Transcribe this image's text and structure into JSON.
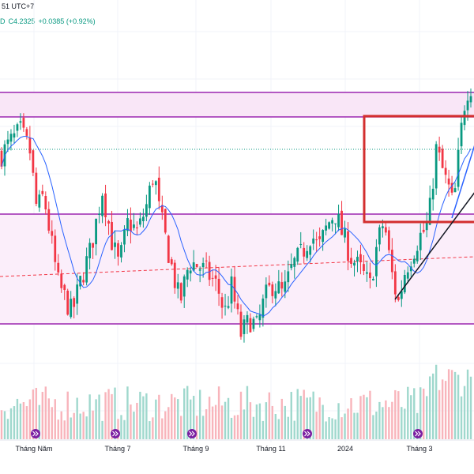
{
  "header": {
    "timezone_text": "51 UTC+7",
    "ohlc_prefix": "D",
    "close_text": "C4.2325",
    "change_text": "+0.0385 (+0.92%)"
  },
  "colors": {
    "up": "#089981",
    "down": "#f23645",
    "ma": "#2962ff",
    "zone_border": "#9c27b0",
    "zone_fill": "#f9e6f7",
    "box": "#d32f2f",
    "trendline": "#131722"
  },
  "events_icon": "double-chevron-right-icon",
  "chart_data": {
    "type": "candlestick",
    "x_axis_ticks": [
      "Tháng Năm",
      "Tháng 7",
      "Tháng 9",
      "Tháng 11",
      "2024",
      "Tháng 3"
    ],
    "last_close": 4.2325,
    "last_change": 0.0385,
    "last_change_pct": 0.92,
    "price_path": [
      [
        0,
        0.82
      ],
      [
        0.02,
        0.88
      ],
      [
        0.04,
        0.93
      ],
      [
        0.06,
        0.84
      ],
      [
        0.075,
        0.55
      ],
      [
        0.09,
        0.62
      ],
      [
        0.12,
        0.2
      ],
      [
        0.15,
        0.05
      ],
      [
        0.17,
        0.22
      ],
      [
        0.19,
        0.36
      ],
      [
        0.215,
        0.65
      ],
      [
        0.235,
        0.4
      ],
      [
        0.25,
        0.28
      ],
      [
        0.27,
        0.5
      ],
      [
        0.29,
        0.44
      ],
      [
        0.31,
        0.58
      ],
      [
        0.325,
        0.74
      ],
      [
        0.335,
        0.56
      ],
      [
        0.36,
        0.3
      ],
      [
        0.38,
        0.1
      ],
      [
        0.4,
        0.3
      ],
      [
        0.42,
        0.28
      ],
      [
        0.44,
        0.24
      ],
      [
        0.46,
        0.18
      ],
      [
        0.475,
        0.05
      ],
      [
        0.49,
        0.18
      ],
      [
        0.51,
        -0.05
      ],
      [
        0.53,
        0.02
      ],
      [
        0.545,
        -0.02
      ],
      [
        0.56,
        0.12
      ],
      [
        0.58,
        0.2
      ],
      [
        0.6,
        0.14
      ],
      [
        0.62,
        0.28
      ],
      [
        0.64,
        0.34
      ],
      [
        0.66,
        0.44
      ],
      [
        0.675,
        0.36
      ],
      [
        0.695,
        0.48
      ],
      [
        0.71,
        0.54
      ],
      [
        0.725,
        0.44
      ],
      [
        0.745,
        0.32
      ],
      [
        0.765,
        0.26
      ],
      [
        0.785,
        0.18
      ],
      [
        0.8,
        0.38
      ],
      [
        0.815,
        0.5
      ],
      [
        0.83,
        0.26
      ],
      [
        0.845,
        0.1
      ],
      [
        0.86,
        0.26
      ],
      [
        0.875,
        0.34
      ],
      [
        0.89,
        0.42
      ],
      [
        0.905,
        0.46
      ],
      [
        0.915,
        0.58
      ],
      [
        0.925,
        0.85
      ],
      [
        0.935,
        0.78
      ],
      [
        0.945,
        0.7
      ],
      [
        0.955,
        0.64
      ],
      [
        0.963,
        0.56
      ],
      [
        0.975,
        0.84
      ],
      [
        0.985,
        1.05
      ],
      [
        0.995,
        1.15
      ]
    ]
  }
}
